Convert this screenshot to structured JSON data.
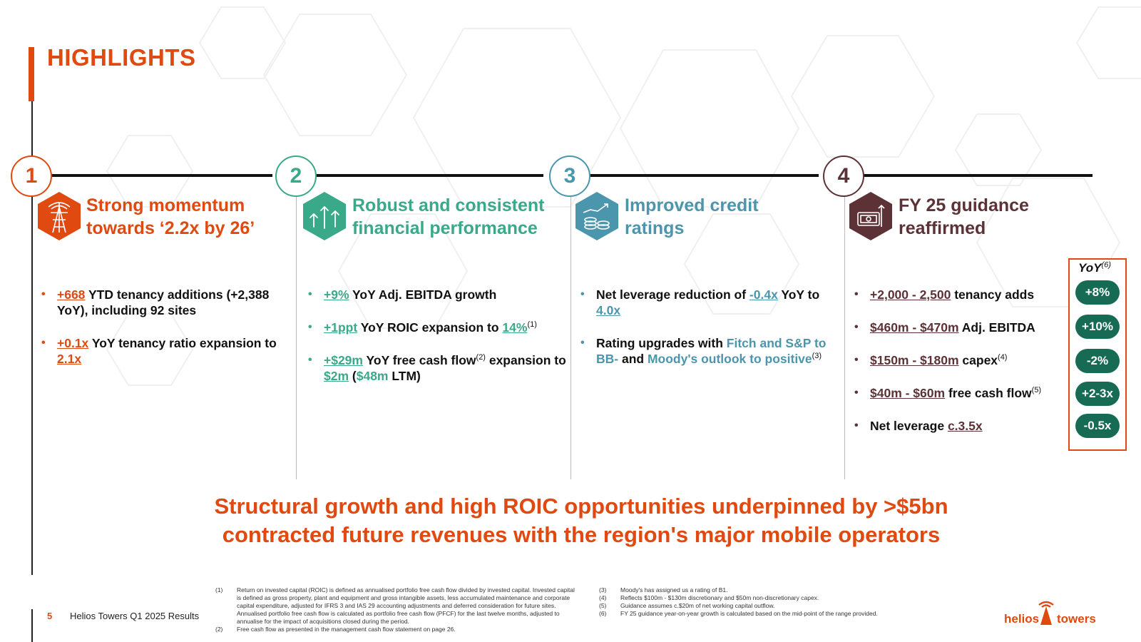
{
  "title": "HIGHLIGHTS",
  "colors": {
    "orange": "#e0490f",
    "teal": "#3aa98a",
    "blue": "#4b95ad",
    "maroon": "#5c3236",
    "green": "#176b55"
  },
  "columns": [
    {
      "number": "1",
      "icon": "tower-icon",
      "title_line1": "Strong momentum",
      "title_line2": "towards ‘2.2x by 26’",
      "bullets": [
        {
          "highlight": "+668",
          "text": " YTD tenancy additions (+2,388 YoY), including 92 sites"
        },
        {
          "highlight": "+0.1x",
          "text": " YoY tenancy ratio expansion to ",
          "highlight2": "2.1x"
        }
      ]
    },
    {
      "number": "2",
      "icon": "growth-arrows-icon",
      "title_line1": "Robust and consistent",
      "title_line2": "financial performance",
      "bullets": [
        {
          "highlight": "+9%",
          "text": " YoY Adj. EBITDA growth"
        },
        {
          "highlight": "+1ppt",
          "text": " YoY ROIC expansion to ",
          "highlight2": "14%",
          "sup": "(1)"
        },
        {
          "highlight": "+$29m",
          "text": " YoY free cash flow",
          "sup": "(2)",
          "text2": " expansion to ",
          "highlight2": "$2m",
          "text3": " (",
          "highlight3": "$48m",
          "text4": " LTM)"
        }
      ]
    },
    {
      "number": "3",
      "icon": "coins-chart-icon",
      "title_line1": "Improved credit",
      "title_line2": "ratings",
      "bullets": [
        {
          "text": "Net leverage reduction of ",
          "highlight": "-0.4x",
          "text2": " YoY to ",
          "highlight2": "4.0x"
        },
        {
          "text": "Rating upgrades with ",
          "highlight": "Fitch and S&P to BB-",
          "text2": " and ",
          "highlight2": "Moody's outlook to positive",
          "sup": "(3)"
        }
      ]
    },
    {
      "number": "4",
      "icon": "cash-register-icon",
      "title_line1": "FY 25 guidance",
      "title_line2": "reaffirmed",
      "bullets": [
        {
          "highlight": "+2,000 - 2,500",
          "text": " tenancy adds"
        },
        {
          "highlight": "$460m - $470m",
          "text": " Adj. EBITDA"
        },
        {
          "highlight": "$150m - $180m",
          "text": " capex",
          "sup": "(4)"
        },
        {
          "highlight": "$40m - $60m",
          "text": " free cash flow",
          "sup": "(5)"
        },
        {
          "text": "Net leverage ",
          "highlight": "c.3.5x"
        }
      ]
    }
  ],
  "yoy": {
    "label": "YoY",
    "label_sup": "(6)",
    "values": [
      "+8%",
      "+10%",
      "-2%",
      "+2-3x",
      "-0.5x"
    ]
  },
  "conclusion_line1": "Structural growth and high ROIC opportunities underpinned by >$5bn",
  "conclusion_line2": "contracted future revenues with the region's major mobile operators",
  "footer": {
    "page": "5",
    "text": "Helios Towers Q1 2025 Results"
  },
  "footnotes_left": [
    {
      "num": "(1)",
      "text": "Return on invested capital (ROIC) is defined as annualised portfolio free cash flow divided by invested capital. Invested capital is defined as gross property, plant and equipment and gross intangible assets, less accumulated maintenance and corporate capital expenditure, adjusted for IFRS 3 and IAS 29 accounting adjustments and deferred consideration for future sites. Annualised portfolio free cash flow is calculated as portfolio free cash flow (PFCF) for the last twelve months, adjusted to annualise for the impact of acquisitions closed during the period."
    },
    {
      "num": "(2)",
      "text": "Free cash flow as presented in the management cash flow statement on page 26."
    }
  ],
  "footnotes_right": [
    {
      "num": "(3)",
      "text": "Moody's has assigned us a rating of B1."
    },
    {
      "num": "(4)",
      "text": "Reflects $100m - $130m discretionary and $50m non-discretionary capex."
    },
    {
      "num": "(5)",
      "text": "Guidance assumes c.$20m of net working capital outflow."
    },
    {
      "num": "(6)",
      "text": "FY 25 guidance year-on-year growth is calculated based on the mid-point of the range provided."
    }
  ],
  "logo": {
    "left": "helios",
    "right": "towers"
  }
}
